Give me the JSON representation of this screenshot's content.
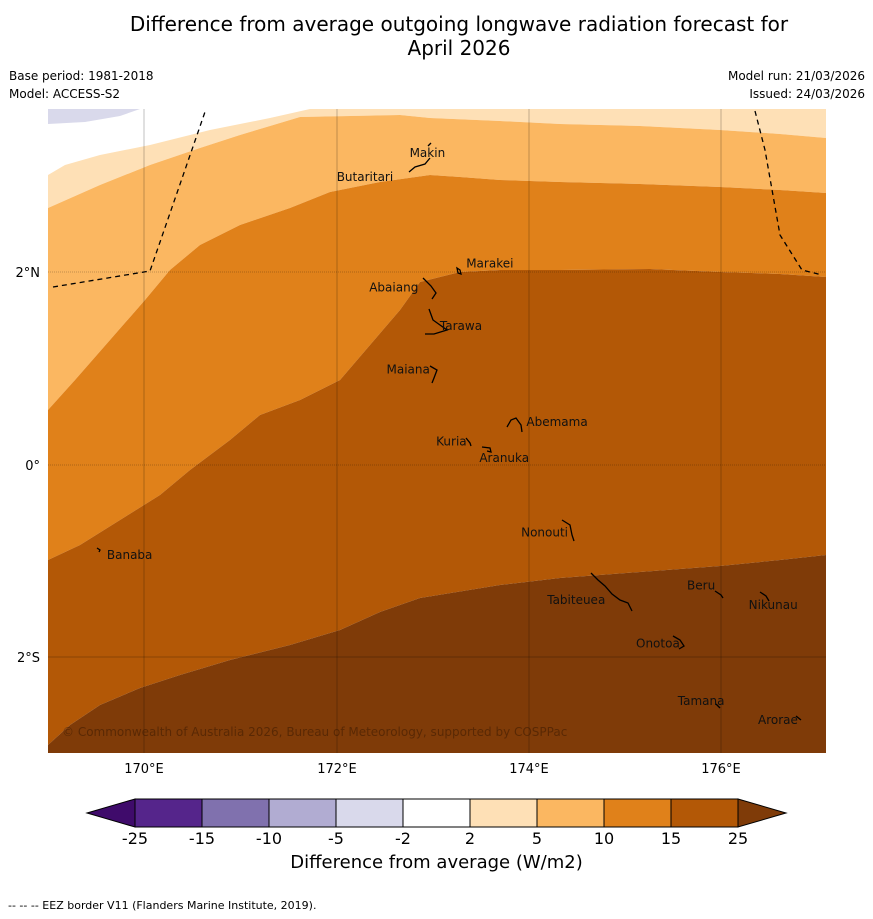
{
  "title": "Difference from average outgoing longwave radiation forecast for April 2026",
  "title_line1": "Difference from average outgoing longwave radiation forecast for",
  "title_line2": "April 2026",
  "meta": {
    "base_period": "Base period: 1981-2018",
    "model": "Model: ACCESS-S2",
    "model_run": "Model run: 21/03/2026",
    "issued": "Issued: 24/03/2026"
  },
  "map": {
    "lon_range": [
      169,
      177.1
    ],
    "lat_range": [
      -3,
      3.7
    ],
    "lon_ticks": [
      {
        "value": 170,
        "label": "170°E"
      },
      {
        "value": 172,
        "label": "172°E"
      },
      {
        "value": 174,
        "label": "174°E"
      },
      {
        "value": 176,
        "label": "176°E"
      }
    ],
    "lat_ticks": [
      {
        "value": 2,
        "label": "2°N"
      },
      {
        "value": 0,
        "label": "0°"
      },
      {
        "value": -2,
        "label": "2°S"
      }
    ],
    "places": [
      {
        "name": "Makin",
        "lon": 172.95,
        "lat": 3.2
      },
      {
        "name": "Butaritari",
        "lon": 172.3,
        "lat": 2.95
      },
      {
        "name": "Marakei",
        "lon": 173.6,
        "lat": 2.05
      },
      {
        "name": "Abaiang",
        "lon": 172.6,
        "lat": 1.8
      },
      {
        "name": "Tarawa",
        "lon": 173.3,
        "lat": 1.4
      },
      {
        "name": "Maiana",
        "lon": 172.75,
        "lat": 0.95
      },
      {
        "name": "Abemama",
        "lon": 174.3,
        "lat": 0.4
      },
      {
        "name": "Kuria",
        "lon": 173.2,
        "lat": 0.2
      },
      {
        "name": "Aranuka",
        "lon": 173.75,
        "lat": 0.03
      },
      {
        "name": "Nonouti",
        "lon": 174.17,
        "lat": -0.75
      },
      {
        "name": "Banaba",
        "lon": 169.85,
        "lat": -0.98
      },
      {
        "name": "Beru",
        "lon": 175.8,
        "lat": -1.3
      },
      {
        "name": "Tabiteuea",
        "lon": 174.5,
        "lat": -1.45
      },
      {
        "name": "Nikunau",
        "lon": 176.55,
        "lat": -1.5
      },
      {
        "name": "Onotoa",
        "lon": 175.35,
        "lat": -1.9
      },
      {
        "name": "Tamana",
        "lon": 175.8,
        "lat": -2.5
      },
      {
        "name": "Arorae",
        "lon": 176.6,
        "lat": -2.7
      }
    ],
    "credit": "© Commonwealth of Australia 2026, Bureau of Meteorology, supported by COSPPac"
  },
  "colors": {
    "c_n25": "#3f0b6b",
    "c_n15": "#55258b",
    "c_n10": "#8071ae",
    "c_n5": "#b1acd2",
    "c_n2": "#d9d9eb",
    "c_0": "#ffffff",
    "c_2": "#fee0b6",
    "c_5": "#fbb761",
    "c_10": "#e0811a",
    "c_15": "#b35806",
    "c_25": "#7f3b08"
  },
  "colorbar": {
    "title": "Difference from average (W/m2)",
    "ticks": [
      "-25",
      "-15",
      "-10",
      "-5",
      "-2",
      "2",
      "5",
      "10",
      "15",
      "25"
    ]
  },
  "footer": "-- -- -- EEZ border V11 (Flanders Marine Institute, 2019)."
}
